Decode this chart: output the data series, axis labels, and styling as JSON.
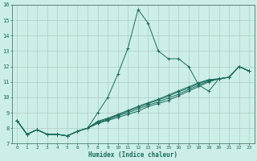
{
  "xlabel": "Humidex (Indice chaleur)",
  "xlim": [
    -0.5,
    23.5
  ],
  "ylim": [
    7,
    16
  ],
  "yticks": [
    7,
    8,
    9,
    10,
    11,
    12,
    13,
    14,
    15,
    16
  ],
  "xticks": [
    0,
    1,
    2,
    3,
    4,
    5,
    6,
    7,
    8,
    9,
    10,
    11,
    12,
    13,
    14,
    15,
    16,
    17,
    18,
    19,
    20,
    21,
    22,
    23
  ],
  "bg_color": "#cceee8",
  "grid_color": "#aaccc4",
  "line_color": "#1a6b5a",
  "spine_color": "#336655",
  "lines": [
    [
      8.5,
      7.6,
      7.9,
      7.6,
      7.6,
      7.5,
      7.8,
      8.0,
      9.0,
      10.0,
      11.5,
      13.2,
      15.7,
      14.8,
      13.0,
      12.5,
      12.5,
      12.0,
      10.8,
      10.4,
      11.2,
      11.3,
      12.0,
      11.7
    ],
    [
      8.5,
      7.6,
      7.9,
      7.6,
      7.6,
      7.5,
      7.8,
      8.0,
      8.3,
      8.5,
      8.7,
      8.9,
      9.1,
      9.4,
      9.6,
      9.8,
      10.1,
      10.4,
      10.7,
      11.0,
      11.2,
      11.3,
      12.0,
      11.7
    ],
    [
      8.5,
      7.6,
      7.9,
      7.6,
      7.6,
      7.5,
      7.8,
      8.0,
      8.35,
      8.55,
      8.8,
      9.0,
      9.25,
      9.5,
      9.7,
      9.95,
      10.2,
      10.5,
      10.8,
      11.05,
      11.2,
      11.3,
      12.0,
      11.7
    ],
    [
      8.5,
      7.6,
      7.9,
      7.6,
      7.6,
      7.5,
      7.8,
      8.0,
      8.4,
      8.6,
      8.85,
      9.1,
      9.35,
      9.6,
      9.82,
      10.08,
      10.35,
      10.6,
      10.9,
      11.1,
      11.2,
      11.3,
      12.0,
      11.7
    ],
    [
      8.5,
      7.6,
      7.9,
      7.6,
      7.6,
      7.5,
      7.8,
      8.0,
      8.45,
      8.65,
      8.9,
      9.15,
      9.42,
      9.65,
      9.88,
      10.15,
      10.42,
      10.68,
      10.95,
      11.15,
      11.2,
      11.3,
      12.0,
      11.7
    ]
  ]
}
